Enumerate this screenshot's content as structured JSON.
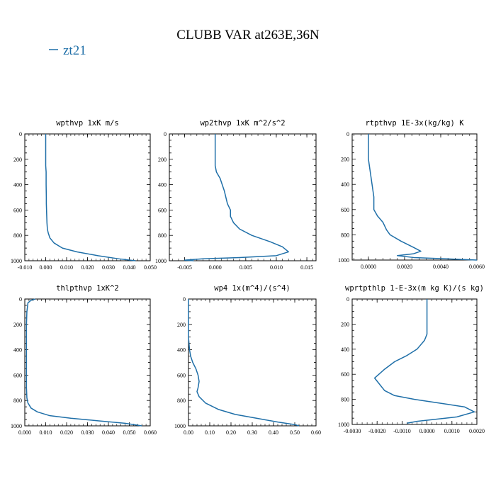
{
  "figure": {
    "title": "CLUBB VAR at263E,36N",
    "legend": "zt21",
    "line_color": "#1f6fa8"
  },
  "chart_data": [
    {
      "type": "line",
      "title": "wpthvp  1xK m/s",
      "xlabel": "",
      "ylabel": "",
      "xlim": [
        -0.01,
        0.05
      ],
      "ylim": [
        1000,
        0
      ],
      "x_ticks": [
        "-0.010",
        "0.000",
        "0.010",
        "0.020",
        "0.030",
        "0.040",
        "0.050"
      ],
      "y_ticks": [
        "0",
        "200",
        "400",
        "600",
        "800",
        "1000"
      ],
      "series": [
        {
          "name": "zt21",
          "x": [
            0.0,
            0.0,
            0.0,
            0.0,
            0.0002,
            0.0002,
            0.0003,
            0.0003,
            0.0005,
            0.0006,
            0.0008,
            0.0012,
            0.002,
            0.004,
            0.008,
            0.015,
            0.025,
            0.035,
            0.043
          ],
          "y": [
            0,
            100,
            200,
            250,
            300,
            400,
            500,
            550,
            650,
            700,
            750,
            780,
            820,
            860,
            900,
            930,
            960,
            985,
            1000
          ]
        }
      ]
    },
    {
      "type": "line",
      "title": "wp2thvp  1xK m^2/s^2",
      "xlabel": "",
      "ylabel": "",
      "xlim": [
        -0.0075,
        0.0165
      ],
      "ylim": [
        1000,
        0
      ],
      "x_ticks": [
        "-0.005",
        "0.000",
        "0.005",
        "0.010",
        "0.015"
      ],
      "y_ticks": [
        "0",
        "200",
        "400",
        "600",
        "800",
        "1000"
      ],
      "series": [
        {
          "name": "zt21",
          "x": [
            0.0,
            0.0,
            0.0,
            0.0002,
            0.0008,
            0.0015,
            0.002,
            0.0025,
            0.0025,
            0.003,
            0.004,
            0.006,
            0.009,
            0.011,
            0.012,
            0.01,
            0.004,
            -0.002,
            -0.005,
            -0.0035
          ],
          "y": [
            0,
            100,
            250,
            300,
            350,
            450,
            550,
            600,
            650,
            700,
            750,
            800,
            850,
            890,
            930,
            960,
            975,
            985,
            995,
            1000
          ]
        }
      ]
    },
    {
      "type": "line",
      "title": "rtpthvp  1E-3x(kg/kg) K",
      "xlabel": "",
      "ylabel": "",
      "xlim": [
        -0.0009,
        0.006
      ],
      "ylim": [
        1000,
        0
      ],
      "x_ticks": [
        "0.0000",
        "0.0020",
        "0.0040",
        "0.0060"
      ],
      "y_ticks": [
        "0",
        "200",
        "400",
        "600",
        "800",
        "1000"
      ],
      "series": [
        {
          "name": "zt21",
          "x": [
            0.0,
            0.0,
            0.0,
            0.0001,
            0.0002,
            0.0003,
            0.0003,
            0.0005,
            0.0008,
            0.0009,
            0.001,
            0.0012,
            0.0018,
            0.0025,
            0.0029,
            0.0025,
            0.0016,
            0.0025,
            0.006
          ],
          "y": [
            0,
            100,
            200,
            300,
            400,
            500,
            600,
            650,
            700,
            730,
            760,
            800,
            850,
            900,
            930,
            950,
            965,
            980,
            1000
          ]
        }
      ]
    },
    {
      "type": "line",
      "title": "thlpthvp  1xK^2",
      "xlabel": "",
      "ylabel": "",
      "xlim": [
        0.0,
        0.06
      ],
      "ylim": [
        1000,
        0
      ],
      "x_ticks": [
        "0.000",
        "0.010",
        "0.020",
        "0.030",
        "0.040",
        "0.050",
        "0.060"
      ],
      "y_ticks": [
        "0",
        "200",
        "400",
        "600",
        "800",
        "1000"
      ],
      "series": [
        {
          "name": "zt21",
          "x": [
            0.005,
            0.003,
            0.0015,
            0.001,
            0.0008,
            0.0008,
            0.0008,
            0.0008,
            0.001,
            0.0015,
            0.003,
            0.006,
            0.012,
            0.022,
            0.035,
            0.048,
            0.056
          ],
          "y": [
            0,
            10,
            30,
            100,
            200,
            400,
            600,
            700,
            780,
            820,
            860,
            890,
            920,
            940,
            960,
            980,
            1000
          ]
        }
      ]
    },
    {
      "type": "line",
      "title": "wp4  1x(m^4)/(s^4)",
      "xlabel": "",
      "ylabel": "",
      "xlim": [
        0.0,
        0.6
      ],
      "ylim": [
        1000,
        0
      ],
      "x_ticks": [
        "0.00",
        "0.10",
        "0.20",
        "0.30",
        "0.40",
        "0.50",
        "0.60"
      ],
      "y_ticks": [
        "0",
        "200",
        "400",
        "600",
        "800",
        "1000"
      ],
      "series": [
        {
          "name": "zt21",
          "x": [
            0.0,
            0.0,
            0.0,
            0.0,
            0.005,
            0.01,
            0.02,
            0.035,
            0.045,
            0.05,
            0.045,
            0.04,
            0.05,
            0.08,
            0.14,
            0.22,
            0.32,
            0.42,
            0.5,
            0.52
          ],
          "y": [
            0,
            100,
            200,
            300,
            400,
            450,
            500,
            550,
            600,
            650,
            700,
            730,
            770,
            820,
            870,
            910,
            940,
            970,
            990,
            1000
          ]
        }
      ]
    },
    {
      "type": "line",
      "title": "wprtpthlp  1-E-3x(m kg K)/(s kg)",
      "xlabel": "",
      "ylabel": "",
      "xlim": [
        -0.003,
        0.002
      ],
      "ylim": [
        1000,
        0
      ],
      "x_ticks": [
        "-0.0030",
        "-0.0020",
        "-0.0010",
        "0.0000",
        "0.0010",
        "0.0020"
      ],
      "y_ticks": [
        "0",
        "200",
        "400",
        "600",
        "800",
        "1000"
      ],
      "series": [
        {
          "name": "zt21",
          "x": [
            0.0,
            0.0,
            0.0,
            -0.0001,
            -0.0004,
            -0.0008,
            -0.0013,
            -0.0017,
            -0.0021,
            -0.0019,
            -0.0017,
            -0.0013,
            -0.0005,
            0.0005,
            0.0015,
            0.0019,
            0.0012,
            -0.0004,
            -0.0008
          ],
          "y": [
            0,
            100,
            280,
            330,
            400,
            450,
            500,
            560,
            630,
            680,
            730,
            770,
            800,
            830,
            860,
            900,
            940,
            975,
            990
          ]
        }
      ]
    }
  ]
}
